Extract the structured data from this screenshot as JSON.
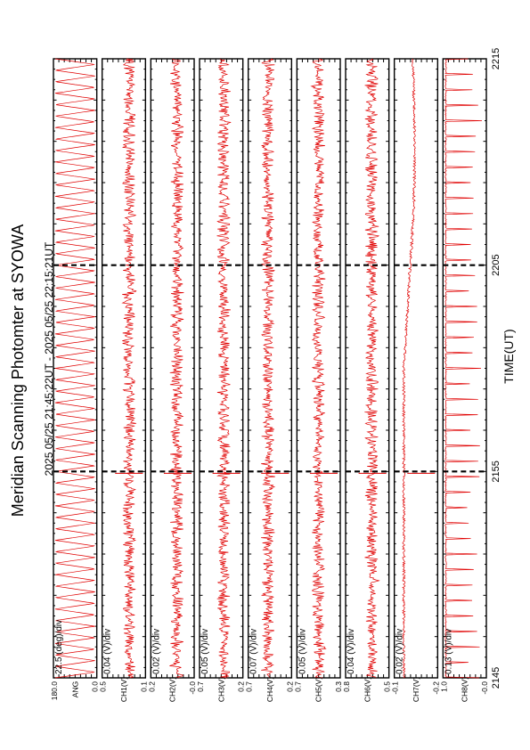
{
  "figure": {
    "title": "Meridian Scanning Photomter at SYOWA",
    "subtitle": "2025 05/25 21:45:22UT - 2025 05/25 22:15:21UT",
    "xlabel": "TIME(UT)",
    "trace_color": "#e00000"
  },
  "chart_data": {
    "type": "line",
    "x_unit": "UT",
    "x_ticks": [
      "2145",
      "2155",
      "2205",
      "2215"
    ],
    "x_range": [
      "21:45:22",
      "22:15:21"
    ],
    "panels": [
      {
        "channel": "ANG",
        "scale_label": "22.5 (deg)/div",
        "ytick_top": "180.0",
        "ytick_bottom": "0.0",
        "ylim": [
          0,
          180
        ],
        "pattern": "scan"
      },
      {
        "channel": "CH1(V)",
        "scale_label": "0.04 (V)/div",
        "ytick_top": "0.5",
        "ytick_bottom": "0.1",
        "ylim": [
          0.1,
          0.5
        ],
        "pattern": "noise",
        "mean": 0.35
      },
      {
        "channel": "CH2(V)",
        "scale_label": "0.02 (V)/div",
        "ytick_top": "0.2",
        "ytick_bottom": "-0.0",
        "ylim": [
          0.0,
          0.2
        ],
        "pattern": "noise",
        "mean": 0.12
      },
      {
        "channel": "CH3(V)",
        "scale_label": "0.05 (V)/div",
        "ytick_top": "0.7",
        "ytick_bottom": "0.2",
        "ylim": [
          0.2,
          0.7
        ],
        "pattern": "noise",
        "mean": 0.48
      },
      {
        "channel": "CH4(V)",
        "scale_label": "0.07 (V)/div",
        "ytick_top": "0.7",
        "ytick_bottom": "0.2",
        "ylim": [
          0.2,
          0.7
        ],
        "pattern": "noise",
        "mean": 0.43
      },
      {
        "channel": "CH5(V)",
        "scale_label": "0.05 (V)/div",
        "ytick_top": "0.7",
        "ytick_bottom": "0.3",
        "ylim": [
          0.3,
          0.7
        ],
        "pattern": "noise",
        "mean": 0.5
      },
      {
        "channel": "CH6(V)",
        "scale_label": "0.04 (V)/div",
        "ytick_top": "0.8",
        "ytick_bottom": "0.5",
        "ylim": [
          0.5,
          0.8
        ],
        "pattern": "noise",
        "mean": 0.68
      },
      {
        "channel": "CH7(V)",
        "scale_label": "0.02 (V)/div",
        "ytick_top": "-0.1",
        "ytick_bottom": "-0.2",
        "ylim": [
          -0.2,
          -0.1
        ],
        "pattern": "drift"
      },
      {
        "channel": "CH8(V)",
        "scale_label": "0.13 (V)/div",
        "ytick_top": "1.0",
        "ytick_bottom": "-0.0",
        "ylim": [
          0.0,
          1.0
        ],
        "pattern": "spikes"
      }
    ]
  }
}
